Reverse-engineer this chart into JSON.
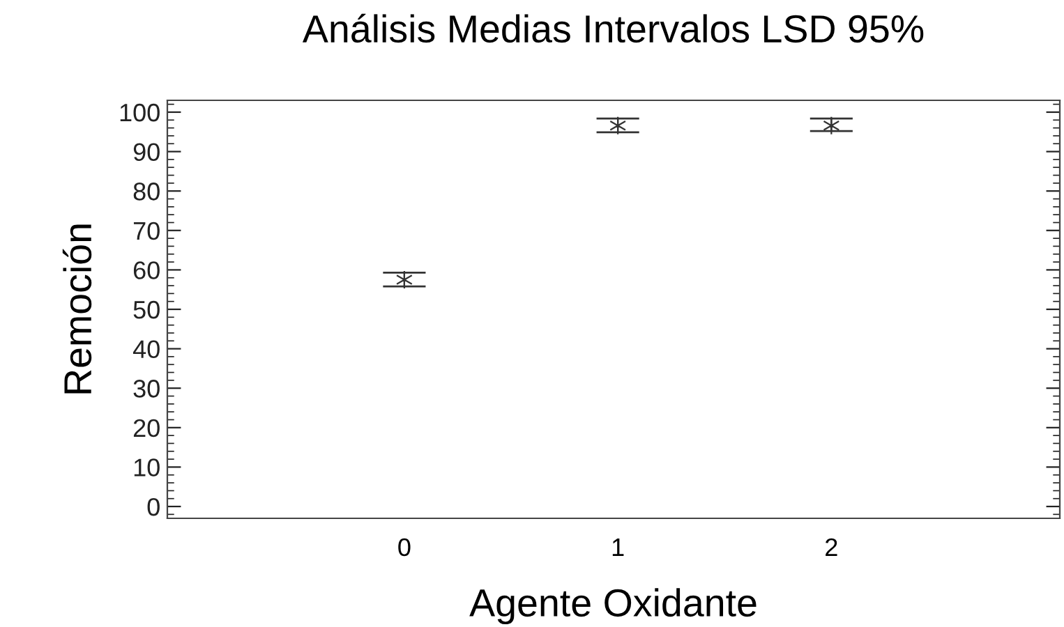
{
  "chart_data": {
    "type": "scatter",
    "title": "Análisis Medias Intervalos LSD 95%",
    "xlabel": "Agente Oxidante",
    "ylabel": "Remoción",
    "categories": [
      "0",
      "1",
      "2"
    ],
    "series": [
      {
        "color": "#333333",
        "values": [
          57.5,
          96.6,
          96.6
        ],
        "errors": [
          [
            55.8,
            59.3
          ],
          [
            94.9,
            98.4
          ],
          [
            95.2,
            98.4
          ]
        ]
      }
    ],
    "marker": "cross",
    "ylim": [
      -3,
      103
    ],
    "yticks": [
      0,
      10,
      20,
      30,
      40,
      50,
      60,
      70,
      80,
      90,
      100
    ],
    "grid": false,
    "legend": false
  }
}
